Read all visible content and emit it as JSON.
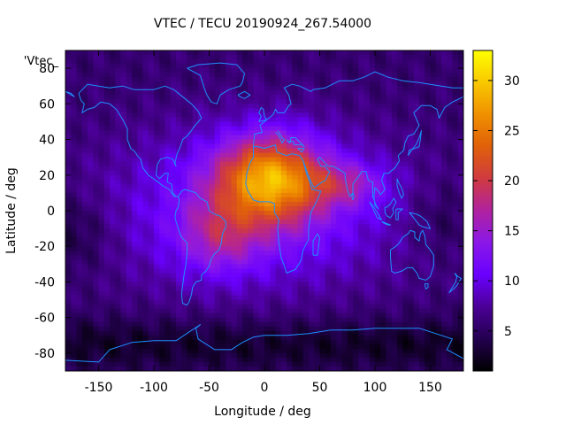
{
  "chart_data": {
    "type": "heatmap",
    "title": "VTEC / TECU 20190924_267.54000",
    "xlabel": "Longitude / deg",
    "ylabel": "Latitude / deg",
    "xlim": [
      -180,
      180
    ],
    "ylim": [
      -90,
      90
    ],
    "xticks": [
      -150,
      -100,
      -50,
      0,
      50,
      100,
      150
    ],
    "yticks": [
      -80,
      -60,
      -40,
      -20,
      0,
      20,
      40,
      60,
      80
    ],
    "colorbar": {
      "min": 1,
      "max": 33,
      "ticks": [
        5,
        10,
        15,
        20,
        25,
        30
      ]
    },
    "series_label": "'Vtec_",
    "grid_resolution_deg": {
      "lon": 5,
      "lat": 2.5
    },
    "anomaly_peak": {
      "lon": 5,
      "lat": 18,
      "value": 32
    },
    "overlay": "coastlines"
  },
  "colors": {
    "coastline": "#1e8fff",
    "colormap": [
      "#000000",
      "#23004f",
      "#4b0096",
      "#6a00ff",
      "#8a18e8",
      "#b0229f",
      "#d03a40",
      "#e0600a",
      "#f09000",
      "#f8c800",
      "#ffff00"
    ]
  }
}
